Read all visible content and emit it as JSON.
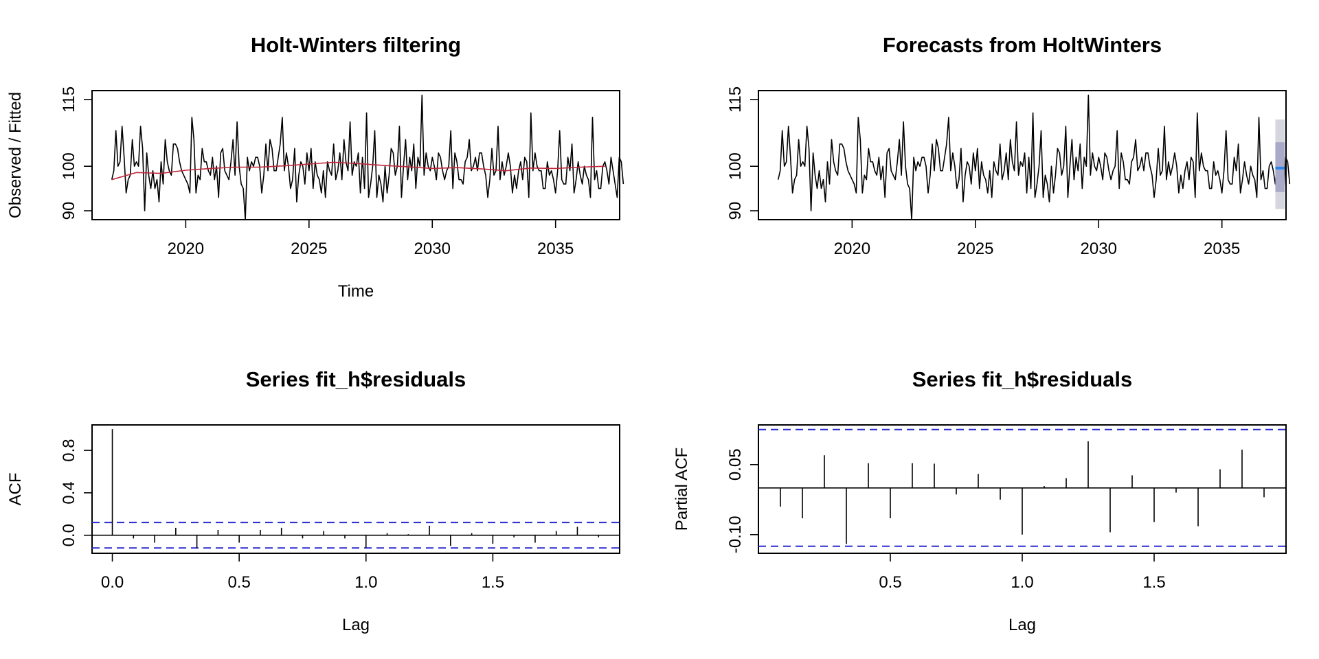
{
  "chart_data": [
    {
      "type": "line",
      "title": "Holt-Winters filtering",
      "xlabel": "Time",
      "ylabel": "Observed / Fitted",
      "xlim": [
        2016.2,
        2037.6
      ],
      "ylim": [
        88,
        117
      ],
      "xticks": [
        2020,
        2025,
        2030,
        2035
      ],
      "yticks": [
        90,
        100,
        115
      ],
      "series": [
        {
          "role": "observed",
          "start": 2017.0,
          "frequency": 12,
          "values": [
            97,
            99,
            108,
            100,
            101,
            109,
            102,
            94,
            97,
            98,
            106,
            100,
            101,
            100,
            109,
            104,
            90,
            103,
            98,
            95,
            99,
            95,
            97,
            92,
            101,
            96,
            106,
            101,
            99,
            98,
            105,
            105,
            104,
            101,
            99,
            98,
            97,
            96,
            94,
            111,
            106,
            94,
            98,
            97,
            104,
            101,
            101,
            99,
            98,
            102,
            97,
            100,
            93,
            103,
            104,
            99,
            98,
            97,
            101,
            106,
            98,
            110,
            100,
            96,
            95,
            88,
            102,
            99,
            101,
            100,
            102,
            102,
            100,
            94,
            98,
            105,
            99,
            106,
            104,
            99,
            99,
            102,
            105,
            111,
            99,
            103,
            100,
            95,
            97,
            104,
            92,
            98,
            101,
            100,
            96,
            103,
            99,
            104,
            95,
            101,
            98,
            97,
            94,
            99,
            93,
            101,
            99,
            98,
            105,
            97,
            99,
            103,
            97,
            106,
            101,
            99,
            110,
            98,
            101,
            100,
            103,
            94,
            102,
            95,
            112,
            93,
            96,
            100,
            108,
            93,
            98,
            96,
            92,
            100,
            94,
            98,
            104,
            103,
            98,
            100,
            109,
            93,
            100,
            106,
            97,
            102,
            99,
            105,
            95,
            102,
            100,
            116,
            98,
            103,
            100,
            99,
            102,
            100,
            97,
            103,
            102,
            99,
            97,
            99,
            100,
            108,
            95,
            103,
            101,
            97,
            97,
            96,
            101,
            102,
            106,
            99,
            100,
            102,
            99,
            103,
            103,
            100,
            98,
            93,
            97,
            104,
            98,
            99,
            109,
            97,
            101,
            98,
            100,
            103,
            100,
            94,
            98,
            95,
            99,
            101,
            97,
            102,
            101,
            93,
            112,
            99,
            103,
            100,
            99,
            99,
            95,
            95,
            101,
            98,
            99,
            97,
            94,
            99,
            108,
            97,
            96,
            96,
            102,
            99,
            105,
            94,
            97,
            101,
            98,
            96,
            100,
            98,
            97,
            93,
            111,
            97,
            99,
            95,
            95,
            100,
            101,
            99,
            96,
            102,
            99,
            96,
            93,
            102,
            101,
            96
          ]
        },
        {
          "role": "fitted",
          "start": 2018.0,
          "frequency": 1,
          "values": [
            98.6,
            98.4,
            99.1,
            99.5,
            99.8,
            99.8,
            100.1,
            100.5,
            100.9,
            100.6,
            100.2,
            99.9,
            99.5,
            99.7,
            99.4,
            99.0,
            99.6,
            99.5,
            99.8,
            100.0
          ]
        }
      ]
    },
    {
      "type": "line",
      "title": "Forecasts from HoltWinters",
      "xlabel": "",
      "ylabel": "",
      "xlim": [
        2016.2,
        2037.6
      ],
      "ylim": [
        88,
        117
      ],
      "xticks": [
        2020,
        2025,
        2030,
        2035
      ],
      "yticks": [
        90,
        100,
        115
      ],
      "forecast": {
        "start": 2037.0,
        "end": 2037.6,
        "mean": 99.6,
        "lower80": 94.2,
        "upper80": 105.4,
        "lower95": 90.4,
        "upper95": 110.5
      }
    },
    {
      "type": "bar",
      "title": "Series  fit_h$residuals",
      "xlabel": "Lag",
      "ylabel": "ACF",
      "xlim": [
        -0.08,
        2.0
      ],
      "ylim": [
        -0.17,
        1.04
      ],
      "xticks": [
        0.0,
        0.5,
        1.0,
        1.5
      ],
      "yticks": [
        0.0,
        0.4,
        0.8
      ],
      "ci": [
        0.12,
        -0.12
      ],
      "lags": [
        0,
        0.0833,
        0.1667,
        0.25,
        0.3333,
        0.4167,
        0.5,
        0.5833,
        0.6667,
        0.75,
        0.8333,
        0.9167,
        1.0,
        1.0833,
        1.1667,
        1.25,
        1.3333,
        1.4167,
        1.5,
        1.5833,
        1.6667,
        1.75,
        1.8333,
        1.9167
      ],
      "values": [
        1.0,
        -0.03,
        -0.07,
        0.07,
        -0.12,
        0.05,
        -0.07,
        0.05,
        0.07,
        -0.03,
        0.04,
        -0.03,
        -0.12,
        0.02,
        0.01,
        0.09,
        -0.1,
        0.02,
        -0.08,
        -0.02,
        -0.07,
        0.04,
        0.08,
        -0.02
      ]
    },
    {
      "type": "bar",
      "title": "Series  fit_h$residuals",
      "xlabel": "Lag",
      "ylabel": "Partial ACF",
      "xlim": [
        0.0,
        2.0
      ],
      "ylim": [
        -0.14,
        0.135
      ],
      "xticks": [
        0.5,
        1.0,
        1.5
      ],
      "yticks": [
        -0.1,
        0.05
      ],
      "ytick_labels": [
        "-0.10",
        "0.05"
      ],
      "ci": [
        0.125,
        -0.125
      ],
      "lags": [
        0.0833,
        0.1667,
        0.25,
        0.3333,
        0.4167,
        0.5,
        0.5833,
        0.6667,
        0.75,
        0.8333,
        0.9167,
        1.0,
        1.0833,
        1.1667,
        1.25,
        1.3333,
        1.4167,
        1.5,
        1.5833,
        1.6667,
        1.75,
        1.8333,
        1.9167
      ],
      "values": [
        -0.04,
        -0.065,
        0.07,
        -0.12,
        0.053,
        -0.065,
        0.053,
        0.052,
        -0.014,
        0.03,
        -0.025,
        -0.1,
        0.004,
        0.021,
        0.1,
        -0.095,
        0.027,
        -0.073,
        -0.01,
        -0.082,
        0.04,
        0.082,
        -0.02
      ]
    }
  ]
}
